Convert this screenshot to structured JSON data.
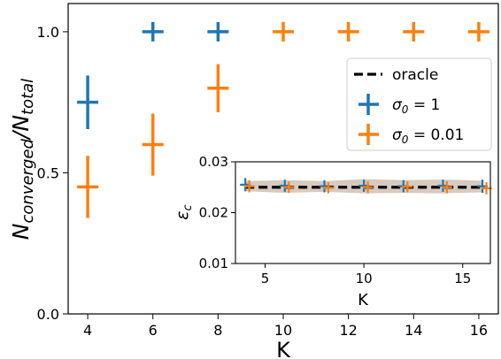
{
  "chart_data": [
    {
      "type": "scatter",
      "title": "",
      "xlabel": "K",
      "ylabel_main": "N",
      "ylabel_sub1": "converged",
      "ylabel_mid": "/N",
      "ylabel_sub2": "total",
      "xlim": [
        3.4,
        16.6
      ],
      "ylim": [
        0.0,
        1.1
      ],
      "xticks": [
        4,
        6,
        8,
        10,
        12,
        14,
        16
      ],
      "xtick_labels": [
        "4",
        "6",
        "8",
        "10",
        "12",
        "14",
        "16"
      ],
      "yticks": [
        0.0,
        0.5,
        1.0
      ],
      "ytick_labels": [
        "0.0",
        "0.5",
        "1.0"
      ],
      "legend_position": "right",
      "legend": [
        {
          "label": "oracle",
          "color": "#000000",
          "style": "dashed"
        },
        {
          "label_main": "σ",
          "label_sub": "0",
          "label_rest": " = 1",
          "color": "#1f77b4",
          "style": "errorbar"
        },
        {
          "label_main": "σ",
          "label_sub": "0",
          "label_rest": " = 0.01",
          "color": "#ff7f0e",
          "style": "errorbar"
        }
      ],
      "series": [
        {
          "name": "σ0 = 1",
          "color": "#1f77b4",
          "points": [
            {
              "x": 4,
              "y": 0.75,
              "yerr": 0.095
            },
            {
              "x": 6,
              "y": 1.0,
              "yerr": 0.0
            },
            {
              "x": 8,
              "y": 1.0,
              "yerr": 0.0
            }
          ]
        },
        {
          "name": "σ0 = 0.01",
          "color": "#ff7f0e",
          "points": [
            {
              "x": 4,
              "y": 0.45,
              "yerr": 0.11
            },
            {
              "x": 6,
              "y": 0.6,
              "yerr": 0.11
            },
            {
              "x": 8,
              "y": 0.8,
              "yerr": 0.085
            },
            {
              "x": 10,
              "y": 1.0,
              "yerr": 0.0
            },
            {
              "x": 12,
              "y": 1.0,
              "yerr": 0.0
            },
            {
              "x": 14,
              "y": 1.0,
              "yerr": 0.0
            },
            {
              "x": 16,
              "y": 1.0,
              "yerr": 0.0
            }
          ]
        }
      ]
    },
    {
      "type": "scatter",
      "title": "",
      "xlabel": "K",
      "ylabel_main": "ε",
      "ylabel_sub": "c",
      "xlim": [
        3.5,
        16.4
      ],
      "ylim": [
        0.01,
        0.03
      ],
      "xticks": [
        5,
        10,
        15
      ],
      "xtick_labels": [
        "5",
        "10",
        "15"
      ],
      "yticks": [
        0.01,
        0.02,
        0.03
      ],
      "ytick_labels": [
        "0.01",
        "0.02",
        "0.03"
      ],
      "oracle": 0.025,
      "band": {
        "color": "#c9b8a8",
        "x": [
          4,
          6,
          8,
          10,
          12,
          14,
          16
        ],
        "upper": [
          0.0262,
          0.0264,
          0.0262,
          0.0266,
          0.0264,
          0.0265,
          0.0263
        ],
        "lower": [
          0.0242,
          0.0239,
          0.0241,
          0.0238,
          0.0239,
          0.0238,
          0.024
        ]
      },
      "series": [
        {
          "name": "σ0 = 1",
          "color": "#1f77b4",
          "points": [
            {
              "x": 4,
              "y": 0.0255,
              "yerr": 0.0013
            },
            {
              "x": 6,
              "y": 0.0253,
              "yerr": 0.0012
            },
            {
              "x": 8,
              "y": 0.0252,
              "yerr": 0.0012
            },
            {
              "x": 10,
              "y": 0.0253,
              "yerr": 0.0012
            },
            {
              "x": 12,
              "y": 0.0252,
              "yerr": 0.0012
            },
            {
              "x": 14,
              "y": 0.0253,
              "yerr": 0.0012
            },
            {
              "x": 16,
              "y": 0.0252,
              "yerr": 0.0013
            }
          ]
        },
        {
          "name": "σ0 = 0.01",
          "color": "#ff7f0e",
          "points": [
            {
              "x": 4.2,
              "y": 0.0252,
              "yerr": 0.0012
            },
            {
              "x": 6.2,
              "y": 0.025,
              "yerr": 0.0011
            },
            {
              "x": 8.2,
              "y": 0.0249,
              "yerr": 0.0011
            },
            {
              "x": 10.2,
              "y": 0.025,
              "yerr": 0.0012
            },
            {
              "x": 12.2,
              "y": 0.0251,
              "yerr": 0.0011
            },
            {
              "x": 14.2,
              "y": 0.025,
              "yerr": 0.0012
            },
            {
              "x": 16.2,
              "y": 0.0248,
              "yerr": 0.0012
            }
          ]
        }
      ]
    }
  ]
}
